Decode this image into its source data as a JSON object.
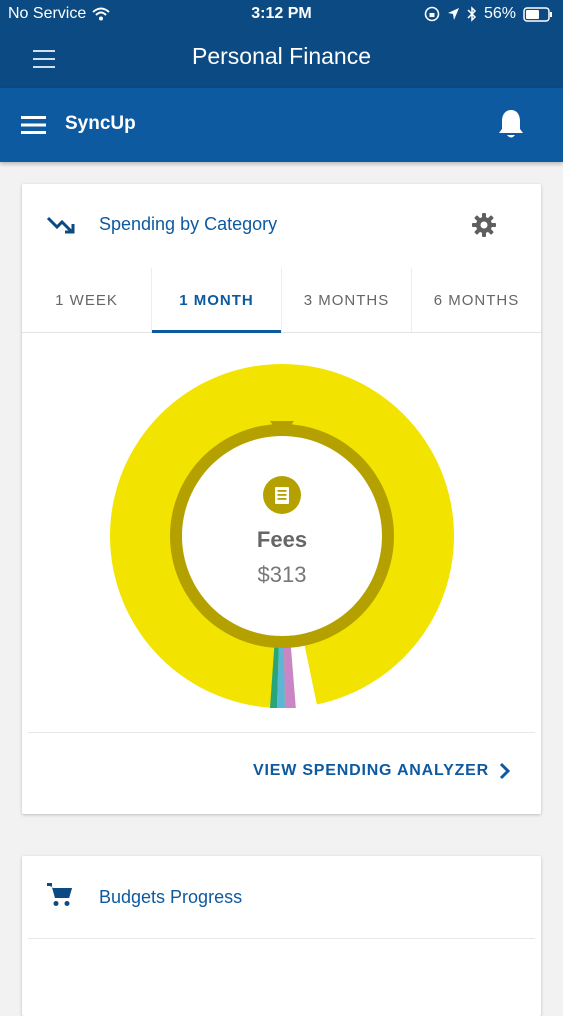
{
  "status_bar": {
    "carrier": "No Service",
    "time": "3:12 PM",
    "battery": "56%"
  },
  "app_bar": {
    "title": "Personal Finance"
  },
  "sub_bar": {
    "brand": "SyncUp"
  },
  "spending_card": {
    "title": "Spending by Category",
    "tabs": [
      "1 WEEK",
      "1 MONTH",
      "3 MONTHS",
      "6 MONTHS"
    ],
    "active_tab": "1 MONTH",
    "selected_category": "Fees",
    "selected_amount": "$313",
    "link_label": "VIEW SPENDING ANALYZER"
  },
  "budgets_card": {
    "title": "Budgets Progress"
  },
  "colors": {
    "header": "#0b4a82",
    "subheader": "#0d5aa0",
    "fees": "#f2e300",
    "fees_inner": "#b4a100"
  }
}
